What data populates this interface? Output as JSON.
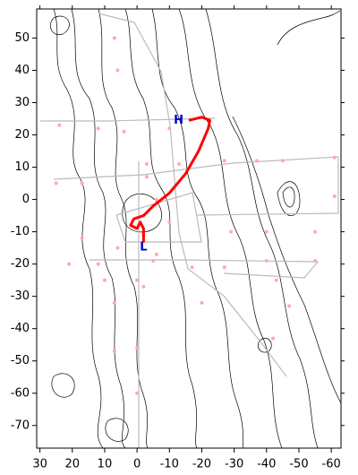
{
  "chart_data": {
    "type": "map",
    "xlim": [
      31,
      -63
    ],
    "ylim": [
      -77,
      59
    ],
    "xticks": [
      30,
      20,
      10,
      0,
      -10,
      -20,
      -30,
      -40,
      -50,
      -60
    ],
    "yticks": [
      50,
      40,
      30,
      20,
      10,
      0,
      -10,
      -20,
      -30,
      -40,
      -50,
      -60,
      -70
    ],
    "track": {
      "color": "#ff0000",
      "x": [
        -16,
        -20,
        -22.5,
        -22,
        -19,
        -15,
        -10,
        -5,
        -2,
        1,
        2,
        0,
        -1,
        -2,
        -2,
        -2
      ],
      "y": [
        24.5,
        25.5,
        24.5,
        22,
        15,
        8,
        2,
        -2,
        -5,
        -6,
        -8,
        -9,
        -7,
        -9,
        -13,
        -12
      ]
    },
    "start_label": {
      "text": "H",
      "color": "#0000cc"
    },
    "end_label": {
      "text": "L",
      "color": "#0000cc"
    },
    "stations": {
      "color": "#ffaaaa",
      "x": [
        24,
        12,
        4,
        -10,
        -3,
        -13,
        -27,
        -37,
        -45,
        -61,
        -61,
        17,
        25,
        -6,
        -2,
        -10,
        -29,
        -40,
        -55,
        -43,
        -47,
        -42,
        -5,
        -17,
        -27,
        -40,
        -55,
        0,
        0,
        0,
        7,
        7,
        6,
        12,
        21,
        17,
        10,
        -20,
        6,
        7,
        -3,
        -6,
        -2
      ],
      "y": [
        23,
        22,
        21,
        22,
        11,
        11,
        12,
        12,
        12,
        13,
        1,
        5,
        5,
        0,
        -11,
        -7,
        -10,
        -10,
        -10,
        -25,
        -33,
        -43,
        -19,
        -21,
        -21,
        -19,
        -19,
        -25,
        -46,
        -60,
        -32,
        -47,
        -15,
        -20,
        -20,
        -12,
        -25,
        -32,
        40,
        50,
        7,
        -17,
        -27
      ]
    }
  }
}
